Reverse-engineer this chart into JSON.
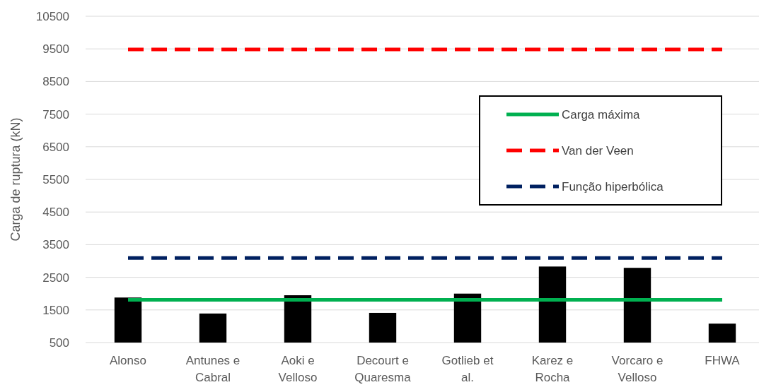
{
  "chart_data": {
    "type": "bar",
    "ylabel": "Carga de ruptura (kN)",
    "categories": [
      "Alonso",
      "Antunes e Cabral",
      "Aoki e Velloso",
      "Decourt e Quaresma",
      "Gotlieb et al.",
      "Karez e Rocha",
      "Vorcaro e Velloso",
      "FHWA"
    ],
    "series": [
      {
        "color": "#000000",
        "values": [
          1880,
          1390,
          1950,
          1410,
          2000,
          2830,
          2790,
          1080
        ]
      },
      {
        "type": "line",
        "name": "Carga máxima",
        "color": "#00b050",
        "line_style": "solid",
        "values": [
          1810,
          1810,
          1810,
          1810,
          1810,
          1810,
          1810,
          1810
        ]
      },
      {
        "type": "line",
        "name": "Van der Veen",
        "color": "#ff0000",
        "line_style": "dashed",
        "values": [
          9480,
          9480,
          9480,
          9480,
          9480,
          9480,
          9480,
          9480
        ]
      },
      {
        "type": "line",
        "name": "Função hiperbólica",
        "color": "#002060",
        "line_style": "dashed",
        "values": [
          3090,
          3090,
          3090,
          3090,
          3090,
          3090,
          3090,
          3090
        ]
      }
    ],
    "ylim": [
      500,
      10500
    ],
    "yticks": [
      500,
      1500,
      2500,
      3500,
      4500,
      5500,
      6500,
      7500,
      8500,
      9500,
      10500
    ],
    "grid": "y",
    "legend": "right"
  }
}
